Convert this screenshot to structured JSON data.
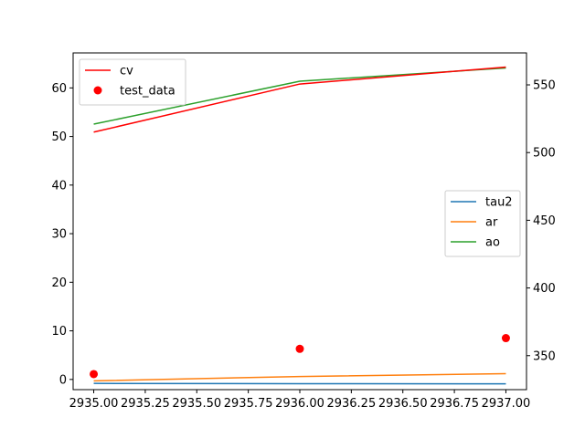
{
  "chart_data": {
    "type": "line",
    "x": [
      2935.0,
      2936.0,
      2937.0
    ],
    "xticks": [
      "2935.00",
      "2935.25",
      "2935.50",
      "2935.75",
      "2936.00",
      "2936.25",
      "2936.50",
      "2936.75",
      "2937.00"
    ],
    "xlim": [
      2934.9,
      2937.1
    ],
    "left_axis": {
      "ylim": [
        -2.1,
        67.2
      ],
      "yticks": [
        "0",
        "10",
        "20",
        "30",
        "40",
        "50",
        "60"
      ],
      "series": [
        {
          "name": "cv",
          "kind": "line",
          "color": "#ff0000",
          "values": [
            50.9,
            60.8,
            64.3
          ]
        },
        {
          "name": "test_data",
          "kind": "scatter",
          "color": "#ff0000",
          "values": [
            1.1,
            6.3,
            8.5
          ]
        }
      ],
      "legend_position": "top-left"
    },
    "right_axis": {
      "ylim": [
        324.9,
        573.6
      ],
      "yticks": [
        "350",
        "400",
        "450",
        "500",
        "550"
      ],
      "series": [
        {
          "name": "tau2",
          "kind": "line",
          "color": "#1f77b4",
          "values": [
            329.5,
            329.3,
            329.2
          ]
        },
        {
          "name": "ar",
          "kind": "line",
          "color": "#ff7f0e",
          "values": [
            331.4,
            334.6,
            336.7
          ]
        },
        {
          "name": "ao",
          "kind": "line",
          "color": "#2ca02c",
          "values": [
            521.0,
            552.7,
            562.5
          ]
        }
      ],
      "legend_position": "center-right"
    },
    "grid": false
  }
}
